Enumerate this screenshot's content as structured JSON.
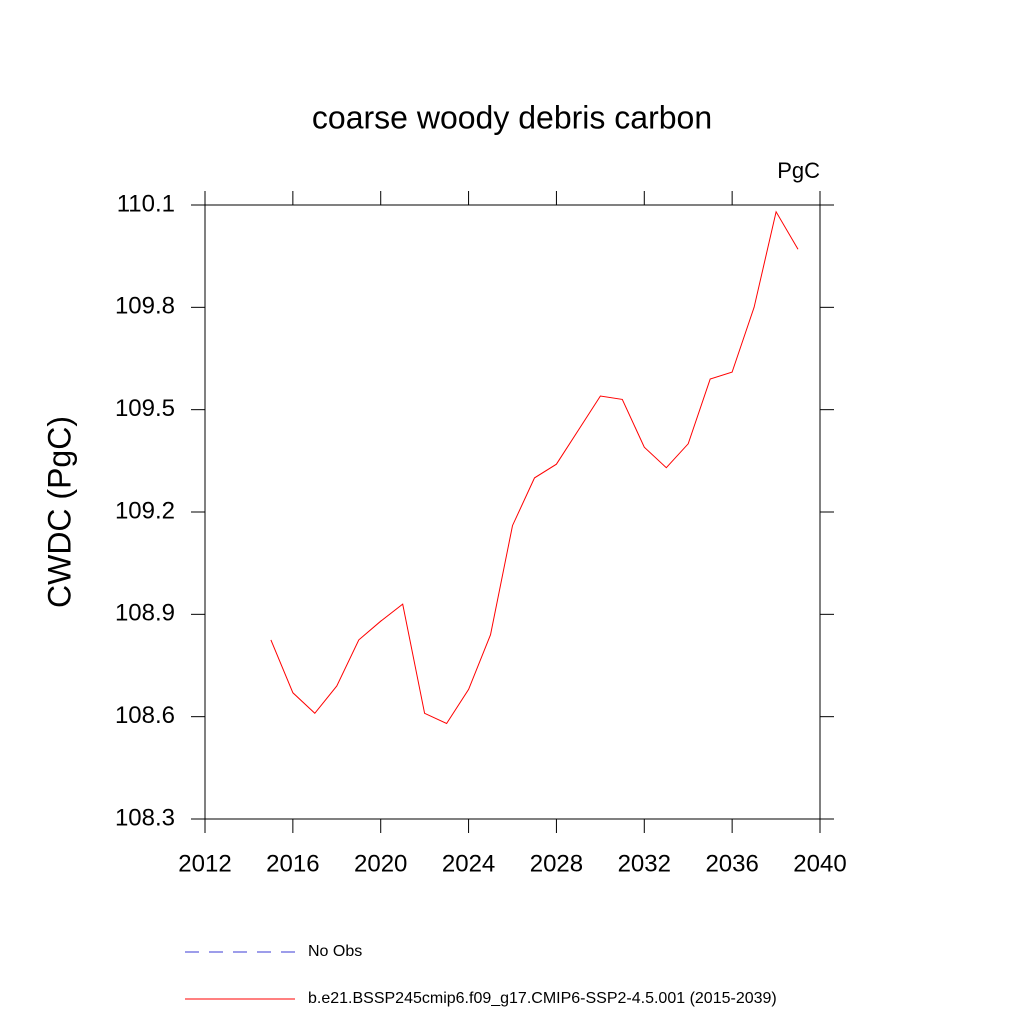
{
  "chart_data": {
    "type": "line",
    "title": "coarse woody debris carbon",
    "units": "PgC",
    "ylabel": "CWDC  (PgC)",
    "x": [
      2015,
      2016,
      2017,
      2018,
      2019,
      2020,
      2021,
      2022,
      2023,
      2024,
      2025,
      2026,
      2027,
      2028,
      2029,
      2030,
      2031,
      2032,
      2033,
      2034,
      2035,
      2036,
      2037,
      2038,
      2039
    ],
    "series": [
      {
        "name": "No Obs",
        "color": "#3b3bd6",
        "dashed": true,
        "values": [
          null,
          null,
          null,
          null,
          null,
          null,
          null,
          null,
          null,
          null,
          null,
          null,
          null,
          null,
          null,
          null,
          null,
          null,
          null,
          null,
          null,
          null,
          null,
          null,
          null
        ]
      },
      {
        "name": "b.e21.BSSP245cmip6.f09_g17.CMIP6-SSP2-4.5.001 (2015-2039)",
        "color": "#ff0000",
        "dashed": false,
        "values": [
          108.825,
          108.67,
          108.61,
          108.69,
          108.825,
          108.88,
          108.93,
          108.61,
          108.58,
          108.68,
          108.84,
          109.16,
          109.3,
          109.34,
          109.44,
          109.54,
          109.53,
          109.39,
          109.33,
          109.4,
          109.59,
          109.61,
          109.8,
          110.08,
          109.97
        ]
      }
    ],
    "xlim": [
      2012,
      2040
    ],
    "xticks": [
      2012,
      2016,
      2020,
      2024,
      2028,
      2032,
      2036,
      2040
    ],
    "ylim": [
      108.3,
      110.1
    ],
    "yticks": [
      108.3,
      108.6,
      108.9,
      109.2,
      109.5,
      109.8,
      110.1
    ],
    "grid": false
  }
}
